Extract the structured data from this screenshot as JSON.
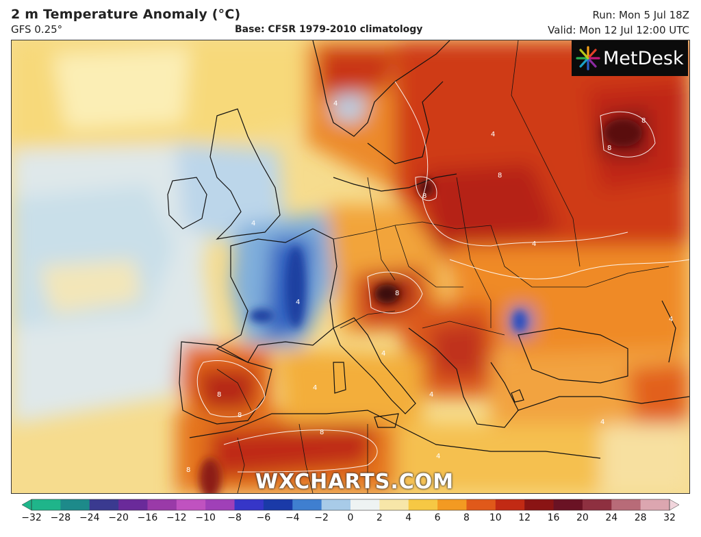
{
  "header": {
    "title": "2 m Temperature Anomaly (°C)",
    "model": "GFS 0.25°",
    "base": "Base: CFSR 1979-2010 climatology",
    "run": "Run: Mon 5 Jul 18Z",
    "valid": "Valid: Mon 12 Jul 12:00 UTC"
  },
  "logo": {
    "text": "MetDesk"
  },
  "watermark": "WXCHARTS.COM",
  "colorbar": {
    "ticks": [
      "−32",
      "−28",
      "−24",
      "−20",
      "−16",
      "−12",
      "−10",
      "−8",
      "−6",
      "−4",
      "−2",
      "0",
      "2",
      "4",
      "6",
      "8",
      "10",
      "12",
      "16",
      "20",
      "24",
      "28",
      "32"
    ],
    "colors": [
      "#1fb58a",
      "#1d8a8a",
      "#3a3a90",
      "#6a2a9a",
      "#9a3aa8",
      "#c052c0",
      "#a040b8",
      "#3636c8",
      "#1a3aa8",
      "#3f7fd0",
      "#a8cbe8",
      "#eef3f3",
      "#f7e6a8",
      "#f6c844",
      "#f39a22",
      "#e0591a",
      "#c22a14",
      "#8a1414",
      "#6a1224",
      "#8e3040",
      "#b86b78",
      "#dca6b0",
      "#f1d5dc"
    ]
  },
  "map_labels": [
    "8",
    "8",
    "8",
    "8",
    "8",
    "8",
    "8",
    "8",
    "8",
    "4",
    "4",
    "4",
    "4",
    "4",
    "4",
    "4",
    "4",
    "4",
    "4",
    "4"
  ]
}
